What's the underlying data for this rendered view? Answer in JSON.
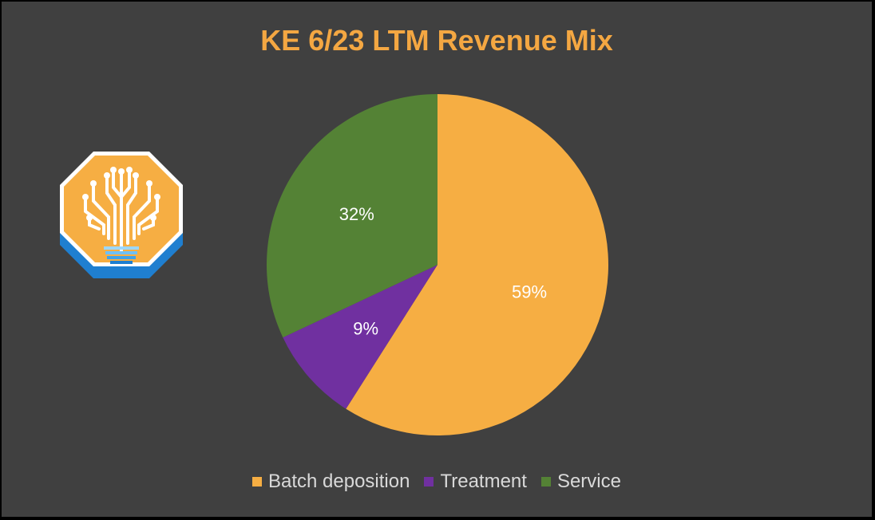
{
  "chart_data": {
    "type": "pie",
    "title": "KE 6/23 LTM Revenue Mix",
    "slices": [
      {
        "label": "Batch deposition",
        "value": 59,
        "data_label": "59%",
        "color": "#F6AE43"
      },
      {
        "label": "Treatment",
        "value": 9,
        "data_label": "9%",
        "color": "#7030A0"
      },
      {
        "label": "Service",
        "value": 32,
        "data_label": "32%",
        "color": "#548235"
      }
    ],
    "legend_position": "bottom",
    "background": "#404040",
    "title_color": "#F4A742",
    "data_label_color": "#FFFFFF"
  },
  "logo": {
    "icon": "lightbulb-tree-icon"
  }
}
